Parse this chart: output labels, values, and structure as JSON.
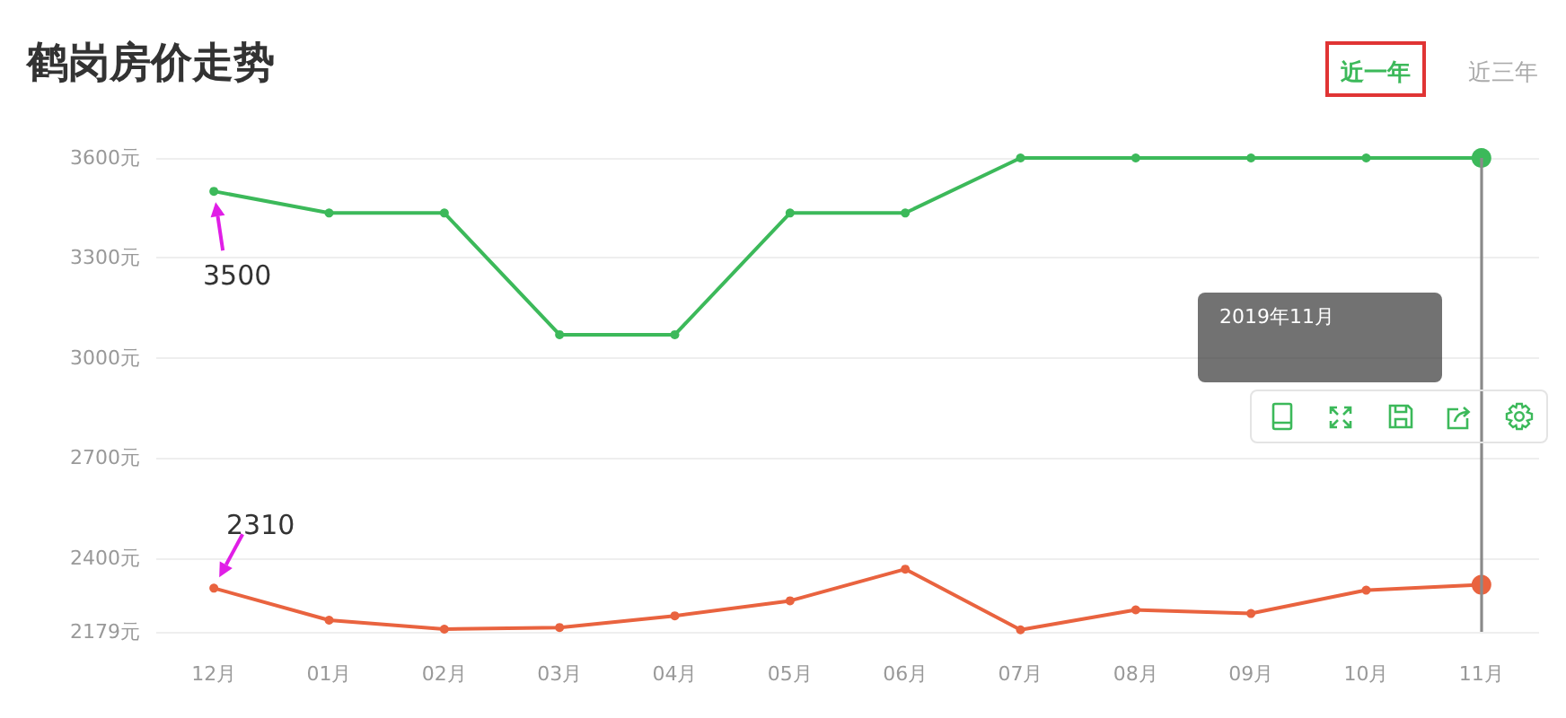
{
  "chart_data": {
    "type": "line",
    "title": "鹤岗房价走势",
    "categories": [
      "12月",
      "01月",
      "02月",
      "03月",
      "04月",
      "05月",
      "06月",
      "07月",
      "08月",
      "09月",
      "10月",
      "11月"
    ],
    "series": [
      {
        "color": "#3cb95a",
        "values": [
          3500,
          3435,
          3435,
          3070,
          3070,
          3435,
          3435,
          3600,
          3600,
          3600,
          3600,
          3600
        ],
        "value_labels": [
          "3500",
          null,
          null,
          null,
          null,
          null,
          null,
          null,
          null,
          null,
          null,
          null
        ]
      },
      {
        "color": "#e9633f",
        "values": [
          2310,
          2214,
          2187,
          2192,
          2227,
          2272,
          2367,
          2185,
          2245,
          2234,
          2304,
          2320
        ],
        "value_labels": [
          "2310",
          null,
          null,
          null,
          null,
          null,
          null,
          null,
          null,
          null,
          null,
          null
        ]
      }
    ],
    "ylim": [
      2179,
      3600
    ],
    "yticks": [
      {
        "value": 2179,
        "label": "2179元"
      },
      {
        "value": 2400,
        "label": "2400元"
      },
      {
        "value": 2700,
        "label": "2700元"
      },
      {
        "value": 3000,
        "label": "3000元"
      },
      {
        "value": 3300,
        "label": "3300元"
      },
      {
        "value": 3600,
        "label": "3600元"
      }
    ],
    "grid": "y",
    "marker": "circle",
    "line_style": "solid",
    "ref_lines": [
      {
        "axis": "x",
        "value": "11月",
        "color": "#8a8a8a"
      }
    ],
    "annotations": [
      "近一年",
      "近三年",
      "2019年11月"
    ]
  }
}
